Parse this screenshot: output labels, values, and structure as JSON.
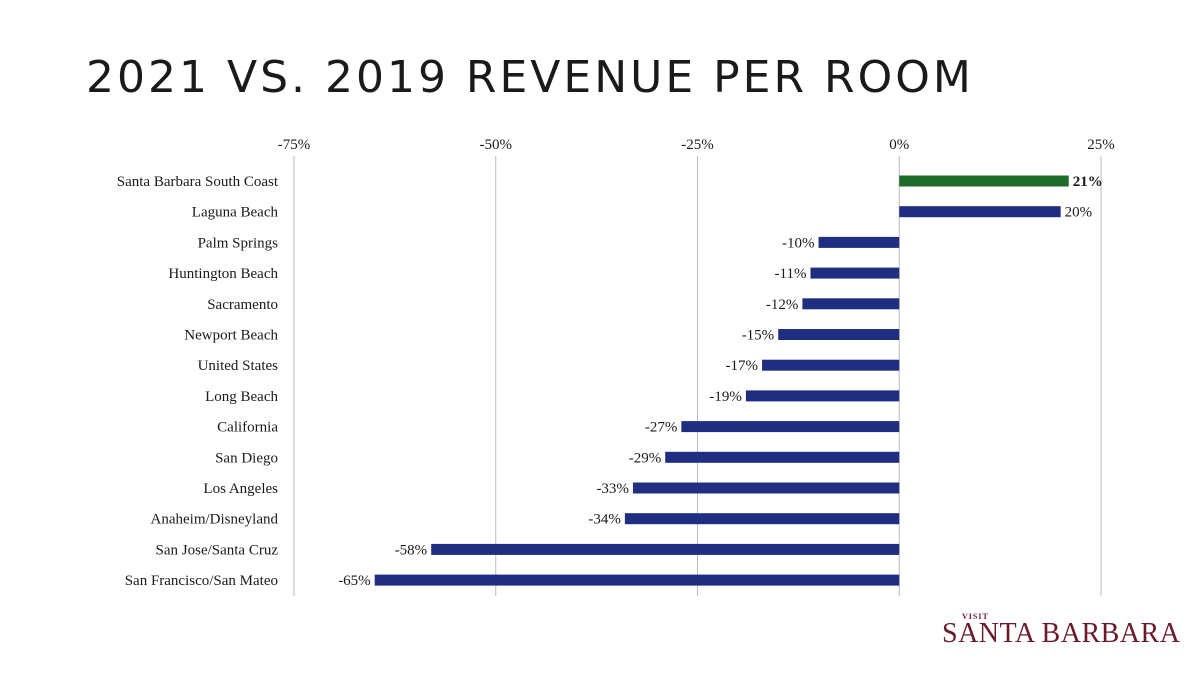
{
  "slide": {
    "title": "2021 VS. 2019 REVENUE PER ROOM"
  },
  "logo": {
    "small_text": "VISIT",
    "main_text": "SANTA BARBARA",
    "color": "#6b1a2a"
  },
  "colors": {
    "highlight_bar": "#1e6b2a",
    "default_bar": "#1f2e80",
    "grid": "#bbbbbb"
  },
  "chart_data": {
    "type": "bar",
    "orientation": "horizontal",
    "xlim": [
      -75,
      25
    ],
    "x_ticks": [
      -75,
      -50,
      -25,
      0,
      25
    ],
    "x_tick_labels": [
      "-75%",
      "-50%",
      "-25%",
      "0%",
      "25%"
    ],
    "axis_position": "top",
    "grid": true,
    "categories": [
      "Santa Barbara South Coast",
      "Laguna Beach",
      "Palm Springs",
      "Huntington Beach",
      "Sacramento",
      "Newport Beach",
      "United States",
      "Long Beach",
      "California",
      "San Diego",
      "Los Angeles",
      "Anaheim/Disneyland",
      "San Jose/Santa Cruz",
      "San Francisco/San Mateo"
    ],
    "values": [
      21,
      20,
      -10,
      -11,
      -12,
      -15,
      -17,
      -19,
      -27,
      -29,
      -33,
      -34,
      -58,
      -65
    ],
    "value_labels": [
      "21%",
      "20%",
      "-10%",
      "-11%",
      "-12%",
      "-15%",
      "-17%",
      "-19%",
      "-27%",
      "-29%",
      "-33%",
      "-34%",
      "-58%",
      "-65%"
    ],
    "highlight_index": 0
  }
}
